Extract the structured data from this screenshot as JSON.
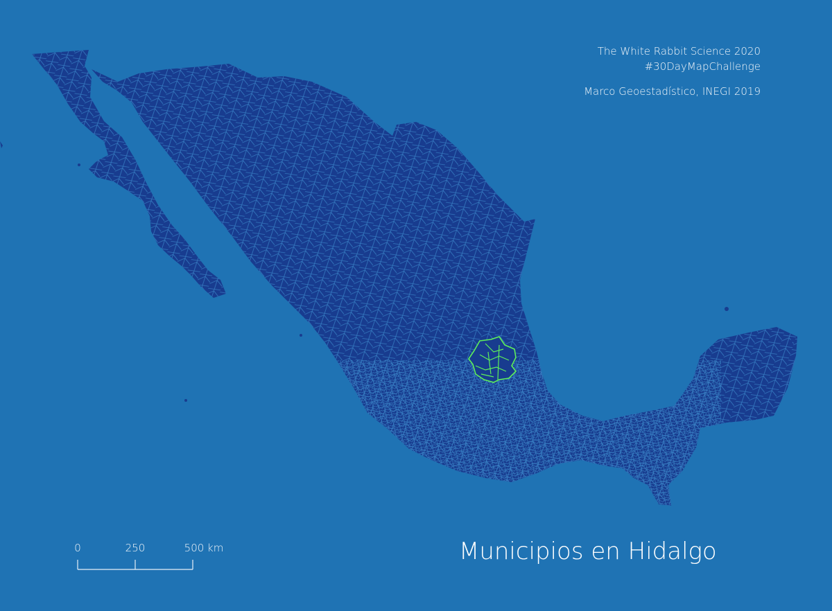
{
  "map": {
    "background_color": "#1f73b4",
    "land_color": "#183c8f",
    "border_color": "#3f8fd0",
    "highlight_color": "#5ef05a",
    "highlight_region": "Hidalgo"
  },
  "title": "Municipios en Hidalgo",
  "credits": {
    "line1": "The White Rabbit Science 2020",
    "line2": "#30DayMapChallenge",
    "line3": "Marco Geoestadístico,  INEGI 2019"
  },
  "scale_bar": {
    "labels": [
      "0",
      "250",
      "500 km"
    ],
    "max_km": 500
  }
}
